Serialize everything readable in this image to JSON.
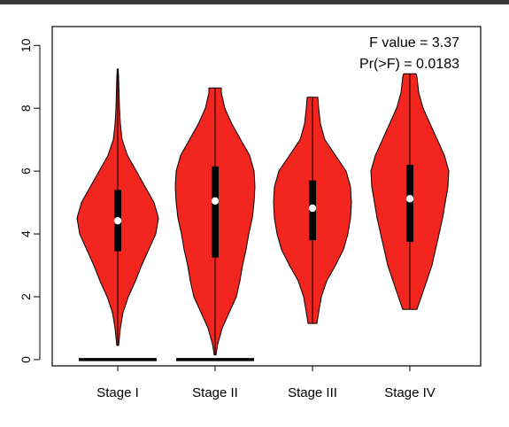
{
  "chart_data": {
    "type": "violin",
    "categories": [
      "Stage I",
      "Stage II",
      "Stage III",
      "Stage IV"
    ],
    "ylim": [
      -0.2,
      10.6
    ],
    "yticks": [
      0,
      2,
      4,
      6,
      8,
      10
    ],
    "xlabel": "",
    "ylabel": "",
    "title": "",
    "annotations": [
      "F value = 3.37",
      "Pr(>F) = 0.0183"
    ],
    "colors": {
      "violin_fill": "#f2261f",
      "outline": "#000000",
      "median": "#ffffff"
    },
    "violins": [
      {
        "category": "Stage I",
        "min": 0.45,
        "max": 9.25,
        "q1": 3.45,
        "q3": 5.4,
        "median": 4.42,
        "profile": [
          [
            0.45,
            1
          ],
          [
            1.0,
            3
          ],
          [
            1.5,
            6
          ],
          [
            2.0,
            12
          ],
          [
            2.5,
            20
          ],
          [
            3.0,
            27
          ],
          [
            3.5,
            35
          ],
          [
            4.0,
            43
          ],
          [
            4.5,
            46
          ],
          [
            5.0,
            41
          ],
          [
            5.5,
            31
          ],
          [
            6.0,
            21
          ],
          [
            6.5,
            11
          ],
          [
            7.0,
            5
          ],
          [
            7.5,
            3
          ],
          [
            8.0,
            2
          ],
          [
            8.5,
            1.5
          ],
          [
            9.0,
            1
          ],
          [
            9.25,
            0.5
          ]
        ],
        "zero_line": true
      },
      {
        "category": "Stage II",
        "min": 0.15,
        "max": 8.65,
        "q1": 3.25,
        "q3": 6.15,
        "median": 5.05,
        "profile": [
          [
            0.15,
            1
          ],
          [
            0.5,
            3
          ],
          [
            1.0,
            8
          ],
          [
            1.5,
            16
          ],
          [
            2.0,
            24
          ],
          [
            2.5,
            28
          ],
          [
            3.0,
            31
          ],
          [
            3.5,
            35
          ],
          [
            4.0,
            38
          ],
          [
            4.5,
            42
          ],
          [
            5.0,
            44
          ],
          [
            5.5,
            45
          ],
          [
            6.0,
            44
          ],
          [
            6.5,
            39
          ],
          [
            7.0,
            29
          ],
          [
            7.5,
            19
          ],
          [
            8.0,
            11
          ],
          [
            8.5,
            7
          ],
          [
            8.65,
            7
          ]
        ],
        "zero_line": true
      },
      {
        "category": "Stage III",
        "min": 1.15,
        "max": 8.35,
        "q1": 3.8,
        "q3": 5.7,
        "median": 4.82,
        "profile": [
          [
            1.15,
            5
          ],
          [
            1.5,
            7
          ],
          [
            2.0,
            10
          ],
          [
            2.5,
            16
          ],
          [
            3.0,
            26
          ],
          [
            3.5,
            35
          ],
          [
            4.0,
            40
          ],
          [
            4.5,
            43
          ],
          [
            5.0,
            44
          ],
          [
            5.5,
            43
          ],
          [
            6.0,
            38
          ],
          [
            6.5,
            26
          ],
          [
            7.0,
            14
          ],
          [
            7.5,
            9
          ],
          [
            8.0,
            7
          ],
          [
            8.35,
            6
          ]
        ],
        "zero_line": false
      },
      {
        "category": "Stage IV",
        "min": 1.6,
        "max": 9.1,
        "q1": 3.75,
        "q3": 6.2,
        "median": 5.12,
        "profile": [
          [
            1.6,
            8
          ],
          [
            2.0,
            13
          ],
          [
            2.5,
            19
          ],
          [
            3.0,
            25
          ],
          [
            3.5,
            29
          ],
          [
            4.0,
            33
          ],
          [
            4.5,
            37
          ],
          [
            5.0,
            40
          ],
          [
            5.5,
            43
          ],
          [
            6.0,
            44
          ],
          [
            6.5,
            39
          ],
          [
            7.0,
            31
          ],
          [
            7.5,
            23
          ],
          [
            8.0,
            15
          ],
          [
            8.5,
            10
          ],
          [
            9.0,
            8
          ],
          [
            9.1,
            7
          ]
        ],
        "zero_line": false
      }
    ]
  }
}
